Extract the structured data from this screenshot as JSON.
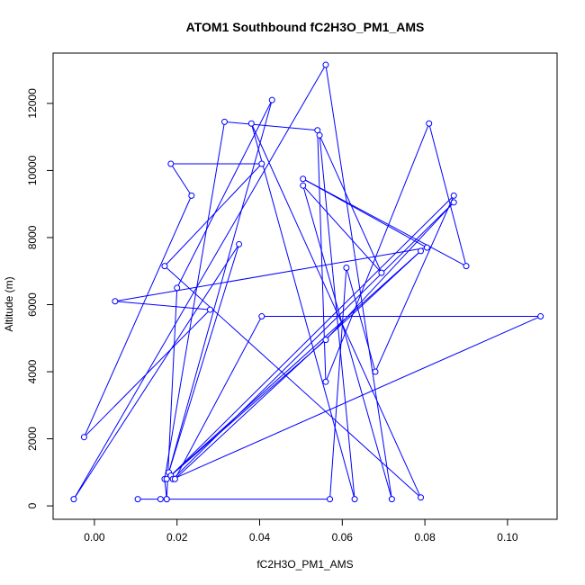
{
  "chart_data": {
    "type": "line",
    "title": "ATOM1 Southbound fC2H3O_PM1_AMS",
    "xlabel": "fC2H3O_PM1_AMS",
    "ylabel": "Altitude (m)",
    "xlim": [
      -0.01,
      0.112
    ],
    "ylim": [
      -400,
      13500
    ],
    "xticks": [
      0.0,
      0.02,
      0.04,
      0.06,
      0.08,
      0.1
    ],
    "xtick_labels": [
      "0.00",
      "0.02",
      "0.04",
      "0.06",
      "0.08",
      "0.10"
    ],
    "yticks": [
      0,
      2000,
      4000,
      6000,
      8000,
      10000,
      12000
    ],
    "ytick_labels": [
      "0",
      "2000",
      "4000",
      "6000",
      "8000",
      "10000",
      "12000"
    ],
    "grid": false,
    "series": [
      {
        "color": "#0000ff",
        "marker": "open-circle",
        "points": [
          {
            "x": 0.0105,
            "y": 200
          },
          {
            "x": 0.016,
            "y": 200
          },
          {
            "x": 0.0175,
            "y": 200
          },
          {
            "x": 0.017,
            "y": 800
          },
          {
            "x": 0.0315,
            "y": 11450
          },
          {
            "x": 0.054,
            "y": 11200
          },
          {
            "x": 0.056,
            "y": 3700
          },
          {
            "x": 0.081,
            "y": 11400
          },
          {
            "x": 0.09,
            "y": 7150
          },
          {
            "x": 0.0505,
            "y": 9750
          },
          {
            "x": 0.0805,
            "y": 7700
          },
          {
            "x": 0.005,
            "y": 6100
          },
          {
            "x": 0.028,
            "y": 5850
          },
          {
            "x": -0.0025,
            "y": 2050
          },
          {
            "x": 0.0235,
            "y": 9250
          },
          {
            "x": 0.0185,
            "y": 10200
          },
          {
            "x": 0.0405,
            "y": 10200
          },
          {
            "x": 0.017,
            "y": 7150
          },
          {
            "x": 0.079,
            "y": 250
          },
          {
            "x": 0.038,
            "y": 11400
          },
          {
            "x": 0.063,
            "y": 200
          },
          {
            "x": 0.0545,
            "y": 11050
          },
          {
            "x": 0.0695,
            "y": 6950
          },
          {
            "x": 0.0505,
            "y": 9550
          },
          {
            "x": 0.072,
            "y": 200
          },
          {
            "x": 0.056,
            "y": 13150
          },
          {
            "x": -0.005,
            "y": 200
          },
          {
            "x": 0.035,
            "y": 7800
          },
          {
            "x": 0.018,
            "y": 1000
          },
          {
            "x": 0.043,
            "y": 12100
          },
          {
            "x": 0.02,
            "y": 6500
          },
          {
            "x": 0.0175,
            "y": 200
          },
          {
            "x": 0.057,
            "y": 200
          },
          {
            "x": 0.061,
            "y": 7100
          },
          {
            "x": 0.068,
            "y": 4000
          },
          {
            "x": 0.087,
            "y": 9250
          },
          {
            "x": 0.0185,
            "y": 900
          },
          {
            "x": 0.056,
            "y": 4950
          },
          {
            "x": 0.087,
            "y": 9050
          },
          {
            "x": 0.019,
            "y": 800
          },
          {
            "x": 0.108,
            "y": 5650
          },
          {
            "x": 0.0405,
            "y": 5650
          },
          {
            "x": 0.0195,
            "y": 800
          },
          {
            "x": 0.079,
            "y": 7600
          },
          {
            "x": 0.0175,
            "y": 800
          }
        ]
      }
    ]
  }
}
